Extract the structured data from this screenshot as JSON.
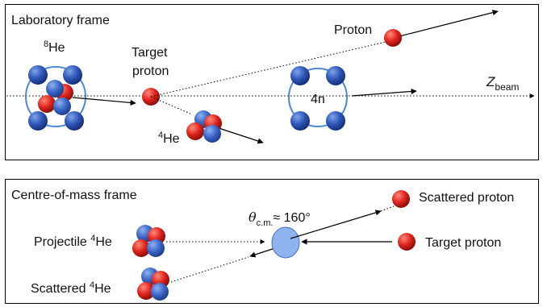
{
  "lab_panel": {
    "title": "Laboratory frame",
    "he8_label_sup": "8",
    "he8_label_main": "He",
    "target_line1": "Target",
    "target_line2": "proton",
    "proton_label": "Proton",
    "neutrons_label": "4n",
    "he4_label_sup": "4",
    "he4_label_main": "He",
    "beam_label_main": "Z",
    "beam_label_sub": "beam"
  },
  "cm_panel": {
    "title": "Centre-of-mass frame",
    "projectile_text": "Projectile ",
    "projectile_sup": "4",
    "projectile_main": "He",
    "scattered_he_text": "Scattered ",
    "scattered_he_sup": "4",
    "scattered_he_main": "He",
    "scattered_proton_label": "Scattered proton",
    "target_proton_label": "Target proton",
    "angle_symbol": "θ",
    "angle_sub": "c.m.",
    "angle_value": "≈ 160°"
  },
  "colors": {
    "neutron": "#2f57b8",
    "proton": "#e0251f",
    "ring": "#4f86d6",
    "cm_ellipse": "#8eb3ee",
    "frame_border": "#000000"
  }
}
